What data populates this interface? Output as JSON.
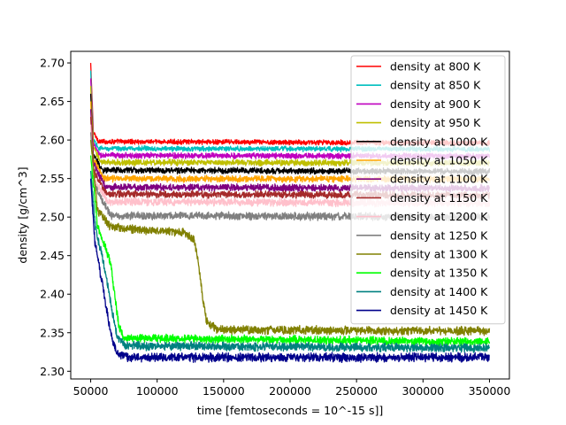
{
  "chart_data": {
    "type": "line",
    "xlabel": "time [femtoseconds = 10^-15 s]]",
    "ylabel": "density [g/cm^3]",
    "xlim": [
      35000,
      365000
    ],
    "ylim": [
      2.29,
      2.715
    ],
    "x_ticks": [
      {
        "value": 50000,
        "label": "50000"
      },
      {
        "value": 100000,
        "label": "100000"
      },
      {
        "value": 150000,
        "label": "150000"
      },
      {
        "value": 200000,
        "label": "200000"
      },
      {
        "value": 250000,
        "label": "250000"
      },
      {
        "value": 300000,
        "label": "300000"
      },
      {
        "value": 350000,
        "label": "350000"
      }
    ],
    "y_ticks": [
      {
        "value": 2.3,
        "label": "2.30"
      },
      {
        "value": 2.35,
        "label": "2.35"
      },
      {
        "value": 2.4,
        "label": "2.40"
      },
      {
        "value": 2.45,
        "label": "2.45"
      },
      {
        "value": 2.5,
        "label": "2.50"
      },
      {
        "value": 2.55,
        "label": "2.55"
      },
      {
        "value": 2.6,
        "label": "2.60"
      },
      {
        "value": 2.65,
        "label": "2.65"
      },
      {
        "value": 2.7,
        "label": "2.70"
      }
    ],
    "grid": false,
    "legend_position": "top-right",
    "series": [
      {
        "name": "density at 800 K",
        "color": "#ff0000",
        "start": 2.7,
        "points": [
          [
            50000,
            2.7
          ],
          [
            52000,
            2.61
          ],
          [
            56000,
            2.598
          ],
          [
            350000,
            2.596
          ]
        ],
        "noise": 0.0025
      },
      {
        "name": "density at 850 K",
        "color": "#00bfbf",
        "start": 2.69,
        "points": [
          [
            50000,
            2.69
          ],
          [
            52000,
            2.6
          ],
          [
            56000,
            2.589
          ],
          [
            350000,
            2.588
          ]
        ],
        "noise": 0.0025
      },
      {
        "name": "density at 900 K",
        "color": "#bf00bf",
        "start": 2.68,
        "points": [
          [
            50000,
            2.68
          ],
          [
            52000,
            2.595
          ],
          [
            57000,
            2.58
          ],
          [
            350000,
            2.579
          ]
        ],
        "noise": 0.0028
      },
      {
        "name": "density at 950 K",
        "color": "#bfbf00",
        "start": 2.67,
        "points": [
          [
            50000,
            2.67
          ],
          [
            52000,
            2.59
          ],
          [
            58000,
            2.571
          ],
          [
            350000,
            2.57
          ]
        ],
        "noise": 0.003
      },
      {
        "name": "density at 1000 K",
        "color": "#000000",
        "start": 2.66,
        "points": [
          [
            50000,
            2.66
          ],
          [
            52000,
            2.58
          ],
          [
            59000,
            2.561
          ],
          [
            350000,
            2.559
          ]
        ],
        "noise": 0.003
      },
      {
        "name": "density at 1050 K",
        "color": "#ffa500",
        "start": 2.65,
        "points": [
          [
            50000,
            2.65
          ],
          [
            52000,
            2.575
          ],
          [
            60000,
            2.55
          ],
          [
            350000,
            2.549
          ]
        ],
        "noise": 0.0032
      },
      {
        "name": "density at 1100 K",
        "color": "#800080",
        "start": 2.64,
        "points": [
          [
            50000,
            2.64
          ],
          [
            52000,
            2.57
          ],
          [
            61000,
            2.539
          ],
          [
            350000,
            2.537
          ]
        ],
        "noise": 0.0035
      },
      {
        "name": "density at 1150 K",
        "color": "#a52a2a",
        "start": 2.63,
        "points": [
          [
            50000,
            2.63
          ],
          [
            52000,
            2.56
          ],
          [
            62000,
            2.53
          ],
          [
            350000,
            2.528
          ]
        ],
        "noise": 0.0035
      },
      {
        "name": "density at 1200 K",
        "color": "#ffc0cb",
        "start": 2.62,
        "points": [
          [
            50000,
            2.62
          ],
          [
            52000,
            2.55
          ],
          [
            63000,
            2.52
          ],
          [
            350000,
            2.518
          ]
        ],
        "noise": 0.0038
      },
      {
        "name": "density at 1250 K",
        "color": "#808080",
        "start": 2.61,
        "points": [
          [
            50000,
            2.61
          ],
          [
            53000,
            2.54
          ],
          [
            65000,
            2.502
          ],
          [
            350000,
            2.5
          ]
        ],
        "noise": 0.0038
      },
      {
        "name": "density at 1300 K",
        "color": "#808000",
        "start": 2.6,
        "points": [
          [
            50000,
            2.6
          ],
          [
            55000,
            2.51
          ],
          [
            65000,
            2.487
          ],
          [
            100000,
            2.482
          ],
          [
            120000,
            2.48
          ],
          [
            128000,
            2.47
          ],
          [
            131000,
            2.44
          ],
          [
            134000,
            2.4
          ],
          [
            137000,
            2.365
          ],
          [
            145000,
            2.354
          ],
          [
            350000,
            2.352
          ]
        ],
        "noise": 0.0042
      },
      {
        "name": "density at 1350 K",
        "color": "#00ff00",
        "start": 2.58,
        "points": [
          [
            50000,
            2.58
          ],
          [
            55000,
            2.49
          ],
          [
            60000,
            2.465
          ],
          [
            65000,
            2.44
          ],
          [
            68000,
            2.4
          ],
          [
            71000,
            2.36
          ],
          [
            75000,
            2.343
          ],
          [
            350000,
            2.338
          ]
        ],
        "noise": 0.0042
      },
      {
        "name": "density at 1400 K",
        "color": "#008080",
        "start": 2.56,
        "points": [
          [
            50000,
            2.56
          ],
          [
            54000,
            2.48
          ],
          [
            58000,
            2.455
          ],
          [
            62000,
            2.42
          ],
          [
            66000,
            2.38
          ],
          [
            70000,
            2.345
          ],
          [
            76000,
            2.333
          ],
          [
            350000,
            2.33
          ]
        ],
        "noise": 0.0042
      },
      {
        "name": "density at 1450 K",
        "color": "#00008b",
        "start": 2.55,
        "points": [
          [
            50000,
            2.55
          ],
          [
            53000,
            2.47
          ],
          [
            57000,
            2.43
          ],
          [
            61000,
            2.39
          ],
          [
            65000,
            2.35
          ],
          [
            70000,
            2.322
          ],
          [
            78000,
            2.318
          ],
          [
            350000,
            2.318
          ]
        ],
        "noise": 0.0045
      }
    ]
  }
}
